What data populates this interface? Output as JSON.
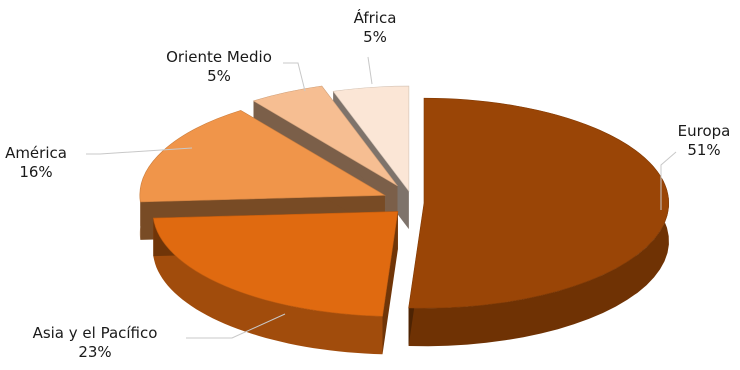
{
  "chart_data": {
    "type": "pie",
    "title": "",
    "categories": [
      "Europa",
      "Asia y el Pacífico",
      "América",
      "Oriente Medio",
      "África"
    ],
    "values": [
      51,
      23,
      16,
      5,
      5
    ],
    "labels": [
      "51%",
      "23%",
      "16%",
      "5%",
      "5%"
    ],
    "colors": [
      "#9a4506",
      "#e06a10",
      "#f0954a",
      "#f6be92",
      "#fbe6d6"
    ],
    "style": "3d-exploded",
    "legend": "none"
  }
}
